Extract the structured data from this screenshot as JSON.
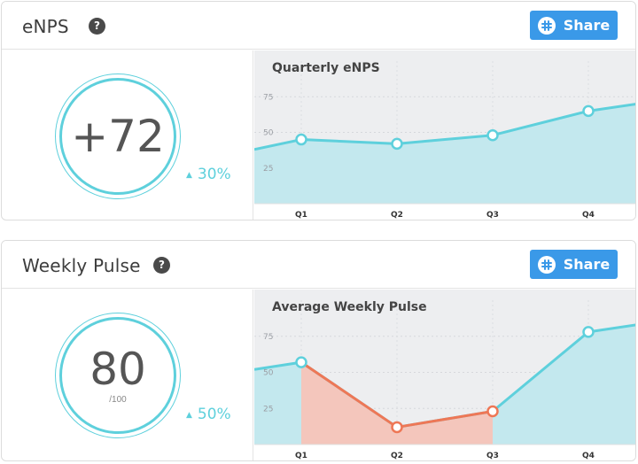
{
  "share_label": "Share",
  "colors": {
    "accent": "#5ed0dc",
    "share": "#3a99e8",
    "negative": "#ee7756"
  },
  "enps": {
    "title": "eNPS",
    "score": "+72",
    "delta": "30%",
    "chart_title": "Quarterly eNPS"
  },
  "pulse": {
    "title": "Weekly Pulse",
    "score": "80",
    "score_suffix": "/100",
    "delta": "50%",
    "chart_title": "Average Weekly Pulse"
  },
  "chart_data": [
    {
      "type": "area",
      "title": "Quarterly eNPS",
      "categories": [
        "Q1",
        "Q2",
        "Q3",
        "Q4"
      ],
      "ylim": [
        0,
        100
      ],
      "yticks": [
        25,
        50,
        75
      ],
      "lead_in": 38,
      "values": [
        45,
        42,
        48,
        65
      ],
      "tail": 70
    },
    {
      "type": "area",
      "title": "Average Weekly Pulse",
      "categories": [
        "Q1",
        "Q2",
        "Q3",
        "Q4"
      ],
      "ylim": [
        0,
        100
      ],
      "yticks": [
        25,
        50,
        75
      ],
      "lead_in": 52,
      "values": [
        57,
        12,
        23,
        78
      ],
      "tail": 83,
      "highlight_range": [
        0,
        2
      ]
    }
  ]
}
